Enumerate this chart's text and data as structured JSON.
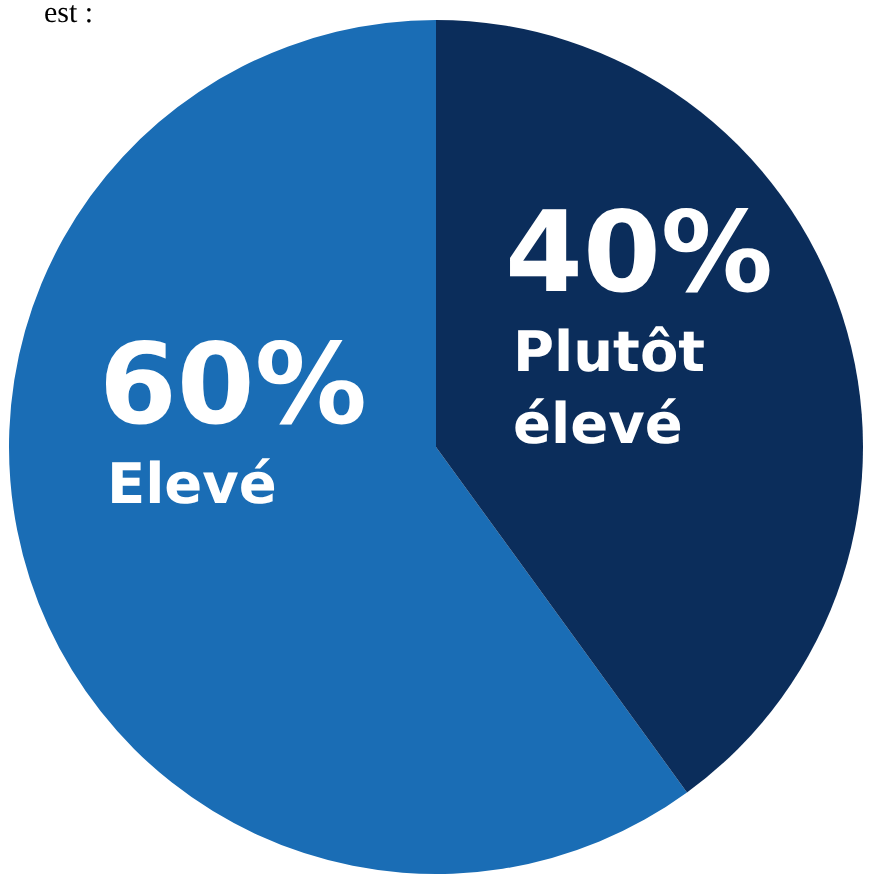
{
  "chart_data": {
    "type": "pie",
    "title": "est :",
    "categories": [
      "Elevé",
      "Plutôt élevé"
    ],
    "values": [
      60,
      40
    ],
    "value_labels": [
      "60%",
      "40%"
    ],
    "colors": [
      "#1a6db5",
      "#0b2d5b"
    ],
    "legend": false
  }
}
